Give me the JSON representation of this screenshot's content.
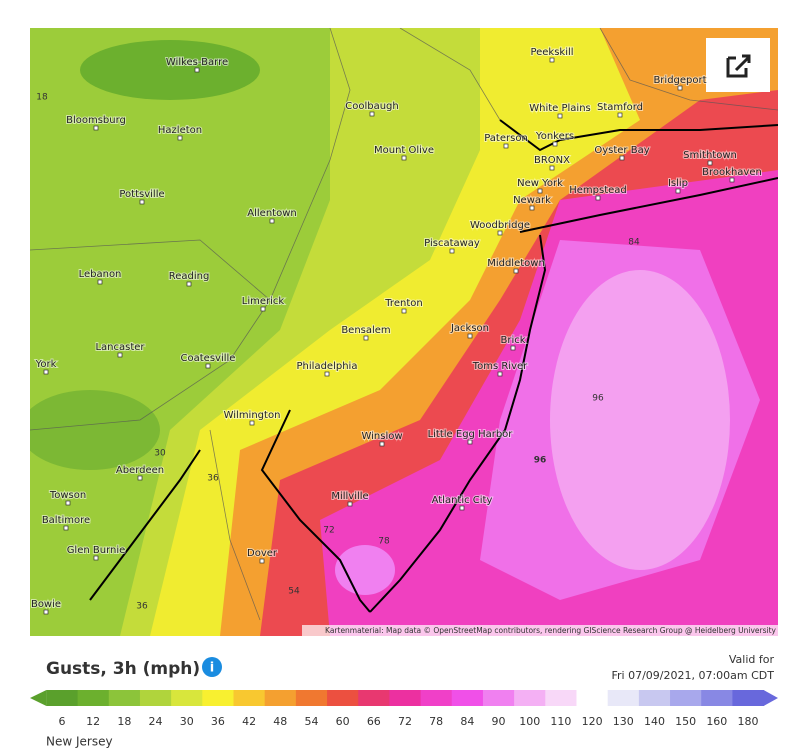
{
  "map": {
    "cities": [
      "Wilkes-Barre",
      "Peekskill",
      "Bridgeport",
      "Coolbaugh",
      "Bloomsburg",
      "Hazleton",
      "White Plains",
      "Stamford",
      "Yonkers",
      "Paterson",
      "Mount Olive",
      "Oyster Bay",
      "BRONX",
      "Smithtown",
      "Brookhaven",
      "Pottsville",
      "New York",
      "Hempstead",
      "Islip",
      "Newark",
      "Allentown",
      "Woodbridge",
      "Piscataway",
      "Lebanon",
      "Reading",
      "Middletown",
      "Limerick",
      "Trenton",
      "Bensalem",
      "Jackson",
      "Brick",
      "Lancaster",
      "Coatesville",
      "Philadelphia",
      "Toms River",
      "York",
      "Wilmington",
      "Winslow",
      "Little Egg Harbor",
      "Aberdeen",
      "Millville",
      "Atlantic City",
      "Towson",
      "Baltimore",
      "Glen Burnie",
      "Dover",
      "Bowie"
    ],
    "contour_labels": [
      18,
      30,
      36,
      36,
      54,
      72,
      78,
      84,
      96,
      96
    ],
    "attribution": "Kartenmaterial: Map data © OpenStreetMap contributors, rendering GIScience Research Group @ Heidelberg University"
  },
  "legend": {
    "title": "Gusts, 3h (mph)",
    "valid_label": "Valid for",
    "valid_time": "Fri 07/09/2021, 07:00am CDT",
    "ticks": [
      6,
      12,
      18,
      24,
      30,
      36,
      42,
      48,
      54,
      60,
      66,
      72,
      78,
      84,
      90,
      100,
      110,
      120,
      130,
      140,
      150,
      160,
      180
    ],
    "colors": [
      "#5aa02c",
      "#6cb02e",
      "#8cc43a",
      "#b0d43c",
      "#d8e63c",
      "#f8f030",
      "#f8c830",
      "#f4a030",
      "#f07830",
      "#ec5040",
      "#e83870",
      "#ec30a0",
      "#f040c8",
      "#f050e8",
      "#f080f0",
      "#f4b0f4",
      "#f8d8f8",
      "#ffffff",
      "#e8e8f8",
      "#c8c8f0",
      "#a8a8ec",
      "#8888e4",
      "#6868dc"
    ]
  },
  "footer": {
    "region": "New Jersey"
  }
}
